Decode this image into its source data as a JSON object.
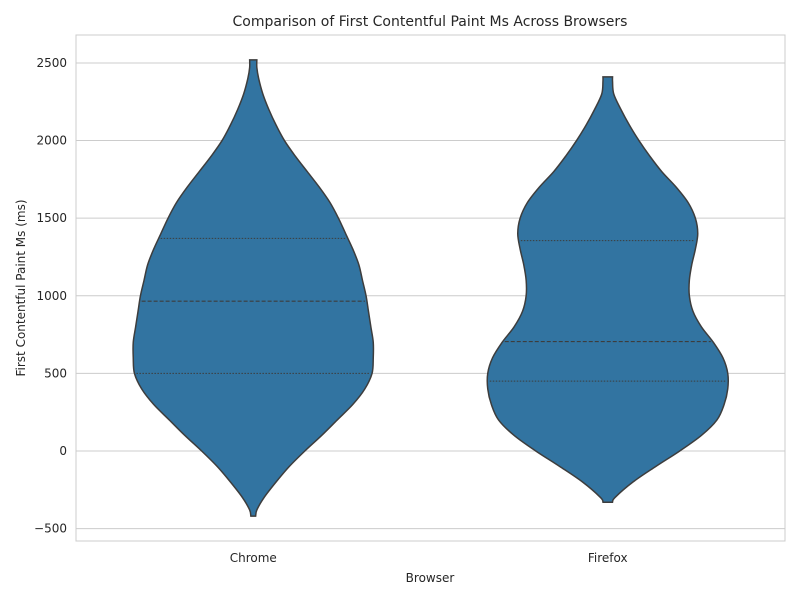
{
  "chart_data": {
    "type": "violin",
    "title": "Comparison of First Contentful Paint Ms Across Browsers",
    "xlabel": "Browser",
    "ylabel": "First Contentful Paint Ms (ms)",
    "ylim": [
      -580,
      2680
    ],
    "yticks": [
      -500,
      0,
      500,
      1000,
      1500,
      2000,
      2500
    ],
    "ytick_labels": [
      "−500",
      "0",
      "500",
      "1000",
      "1500",
      "2000",
      "2500"
    ],
    "grid": true,
    "fill_color": "#3274a1",
    "categories": [
      "Chrome",
      "Firefox"
    ],
    "series": [
      {
        "category": "Chrome",
        "min": -420,
        "max": 2520,
        "quartiles": {
          "q1": 500,
          "median": 965,
          "q3": 1370
        },
        "profile": [
          [
            -420,
            0.02
          ],
          [
            -380,
            0.03
          ],
          [
            -300,
            0.09
          ],
          [
            -200,
            0.19
          ],
          [
            -100,
            0.3
          ],
          [
            0,
            0.43
          ],
          [
            100,
            0.57
          ],
          [
            200,
            0.7
          ],
          [
            300,
            0.83
          ],
          [
            400,
            0.93
          ],
          [
            500,
            0.99
          ],
          [
            600,
            1.0
          ],
          [
            700,
            1.0
          ],
          [
            800,
            0.98
          ],
          [
            900,
            0.96
          ],
          [
            1000,
            0.94
          ],
          [
            1100,
            0.91
          ],
          [
            1200,
            0.88
          ],
          [
            1300,
            0.83
          ],
          [
            1400,
            0.77
          ],
          [
            1500,
            0.71
          ],
          [
            1600,
            0.64
          ],
          [
            1700,
            0.55
          ],
          [
            1800,
            0.45
          ],
          [
            1900,
            0.35
          ],
          [
            2000,
            0.26
          ],
          [
            2100,
            0.19
          ],
          [
            2200,
            0.13
          ],
          [
            2300,
            0.08
          ],
          [
            2400,
            0.045
          ],
          [
            2470,
            0.03
          ],
          [
            2520,
            0.03
          ]
        ]
      },
      {
        "category": "Firefox",
        "min": -330,
        "max": 2410,
        "quartiles": {
          "q1": 450,
          "median": 705,
          "q3": 1355
        },
        "profile": [
          [
            -330,
            0.04
          ],
          [
            -300,
            0.06
          ],
          [
            -200,
            0.21
          ],
          [
            -100,
            0.4
          ],
          [
            0,
            0.6
          ],
          [
            100,
            0.78
          ],
          [
            200,
            0.91
          ],
          [
            300,
            0.97
          ],
          [
            400,
            1.0
          ],
          [
            500,
            1.0
          ],
          [
            600,
            0.96
          ],
          [
            700,
            0.88
          ],
          [
            800,
            0.78
          ],
          [
            900,
            0.71
          ],
          [
            1000,
            0.68
          ],
          [
            1100,
            0.68
          ],
          [
            1200,
            0.7
          ],
          [
            1300,
            0.73
          ],
          [
            1400,
            0.75
          ],
          [
            1500,
            0.73
          ],
          [
            1600,
            0.67
          ],
          [
            1700,
            0.57
          ],
          [
            1800,
            0.45
          ],
          [
            1900,
            0.35
          ],
          [
            2000,
            0.26
          ],
          [
            2100,
            0.18
          ],
          [
            2200,
            0.11
          ],
          [
            2300,
            0.05
          ],
          [
            2380,
            0.04
          ],
          [
            2410,
            0.04
          ]
        ]
      }
    ]
  }
}
